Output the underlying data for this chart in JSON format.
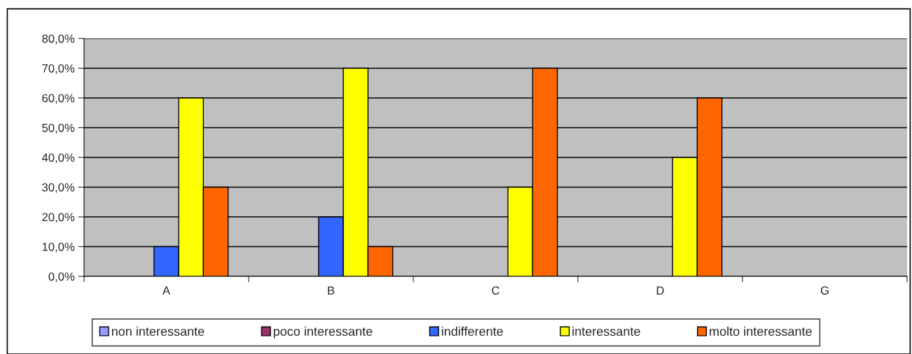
{
  "chart_data": {
    "type": "bar",
    "categories": [
      "A",
      "B",
      "C",
      "D",
      "G"
    ],
    "series": [
      {
        "name": "non interessante",
        "color": "#9999ff",
        "values": [
          0,
          0,
          0,
          0,
          0
        ]
      },
      {
        "name": "poco interessante",
        "color": "#993366",
        "values": [
          0,
          0,
          0,
          0,
          0
        ]
      },
      {
        "name": "indifferente",
        "color": "#3366ff",
        "values": [
          10,
          20,
          0,
          0,
          0
        ]
      },
      {
        "name": "interessante",
        "color": "#ffff00",
        "values": [
          60,
          70,
          30,
          40,
          0
        ]
      },
      {
        "name": "molto interessante",
        "color": "#ff6600",
        "values": [
          30,
          10,
          70,
          60,
          0
        ]
      }
    ],
    "ylim": [
      0,
      80
    ],
    "yticks": [
      {
        "value": 0,
        "label": "0,0%"
      },
      {
        "value": 10,
        "label": "10,0%"
      },
      {
        "value": 20,
        "label": "20,0%"
      },
      {
        "value": 30,
        "label": "30,0%"
      },
      {
        "value": 40,
        "label": "40,0%"
      },
      {
        "value": 50,
        "label": "50,0%"
      },
      {
        "value": 60,
        "label": "60,0%"
      },
      {
        "value": 70,
        "label": "70,0%"
      },
      {
        "value": 80,
        "label": "80,0%"
      }
    ],
    "grid": "y",
    "legend": "bottom"
  }
}
